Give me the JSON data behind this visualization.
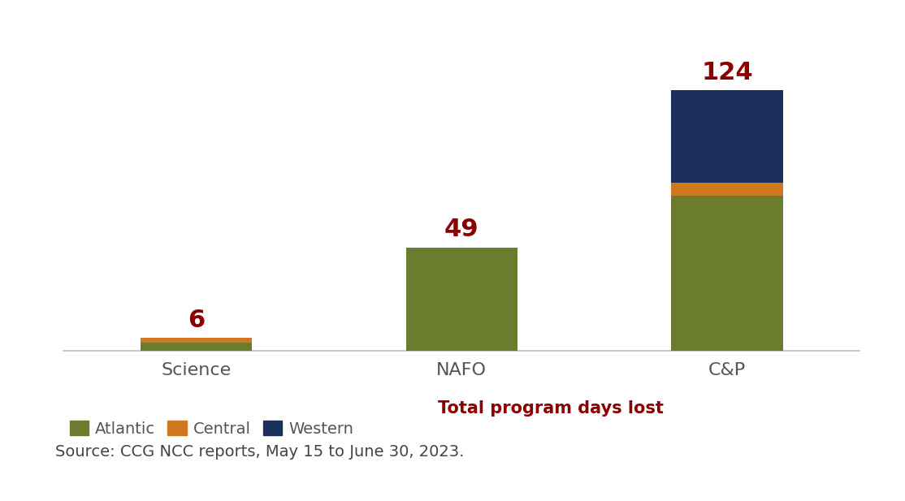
{
  "categories": [
    "Science",
    "NAFO",
    "C&P"
  ],
  "atlantic": [
    4,
    49,
    74
  ],
  "central": [
    2,
    0,
    6
  ],
  "western": [
    0,
    0,
    44
  ],
  "totals": [
    6,
    49,
    124
  ],
  "colors": {
    "atlantic": "#6b7c2e",
    "central": "#d07820",
    "western": "#1a2e5a"
  },
  "total_color": "#8b0000",
  "total_fontsize": 22,
  "total_fontweight": "bold",
  "bar_width": 0.42,
  "xtick_fontsize": 16,
  "xtick_color": "#555555",
  "legend_fontsize": 14,
  "source_text": "Source: CCG NCC reports, May 15 to June 30, 2023.",
  "source_fontsize": 14,
  "source_color": "#444444",
  "ylim": [
    0,
    148
  ],
  "background_color": "#ffffff",
  "legend_label_text": "Total program days lost",
  "legend_label_color": "#8b0000",
  "legend_label_fontsize": 15,
  "legend_label_fontweight": "bold",
  "spine_color": "#bbbbbb"
}
